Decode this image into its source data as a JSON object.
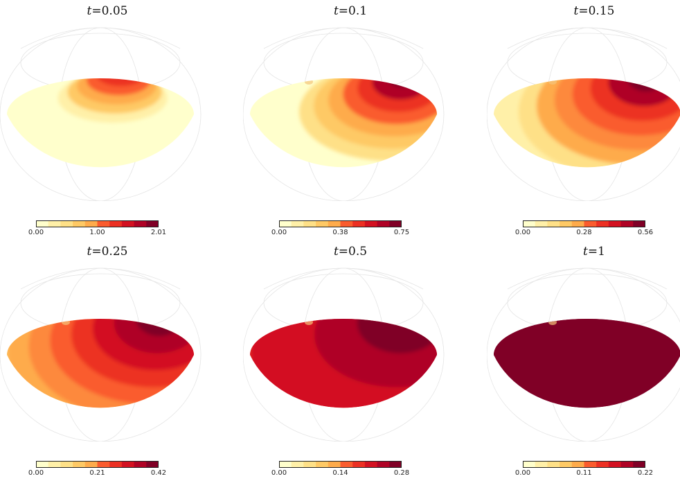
{
  "palette": [
    "#ffffcc",
    "#fff0a8",
    "#fee087",
    "#fec965",
    "#feab4b",
    "#fd893c",
    "#fa5c2e",
    "#ec3023",
    "#d31121",
    "#af0225",
    "#800026"
  ],
  "chart_data": [
    {
      "type": "heatmap",
      "title_var": "t",
      "title_value": "=0.05",
      "t": 0.05,
      "clim": [
        0,
        2.01
      ],
      "ticks": [
        "0.00",
        "1.00",
        "2.01"
      ],
      "hot_level": 1.0,
      "background_level": 0.0,
      "hotspot": "narrow"
    },
    {
      "type": "heatmap",
      "title_var": "t",
      "title_value": "=0.1",
      "t": 0.1,
      "clim": [
        0,
        0.75
      ],
      "ticks": [
        "0.00",
        "0.38",
        "0.75"
      ],
      "hot_level": 1.0,
      "background_level": 0.02,
      "hotspot": "wide"
    },
    {
      "type": "heatmap",
      "title_var": "t",
      "title_value": "=0.15",
      "t": 0.15,
      "clim": [
        0,
        0.56
      ],
      "ticks": [
        "0.00",
        "0.28",
        "0.56"
      ],
      "hot_level": 1.0,
      "background_level": 0.1,
      "hotspot": "wider"
    },
    {
      "type": "heatmap",
      "title_var": "t",
      "title_value": "=0.25",
      "t": 0.25,
      "clim": [
        0,
        0.42
      ],
      "ticks": [
        "0.00",
        "0.21",
        "0.42"
      ],
      "hot_level": 1.0,
      "background_level": 0.3,
      "hotspot": "broad"
    },
    {
      "type": "heatmap",
      "title_var": "t",
      "title_value": "=0.5",
      "t": 0.5,
      "clim": [
        0,
        0.28
      ],
      "ticks": [
        "0.00",
        "0.14",
        "0.28"
      ],
      "hot_level": 1.0,
      "background_level": 0.72,
      "hotspot": "broad"
    },
    {
      "type": "heatmap",
      "title_var": "t",
      "title_value": "=1",
      "t": 1,
      "clim": [
        0,
        0.22
      ],
      "ticks": [
        "0.00",
        "0.11",
        "0.22"
      ],
      "hot_level": 1.0,
      "background_level": 0.98,
      "hotspot": "uniform"
    }
  ]
}
